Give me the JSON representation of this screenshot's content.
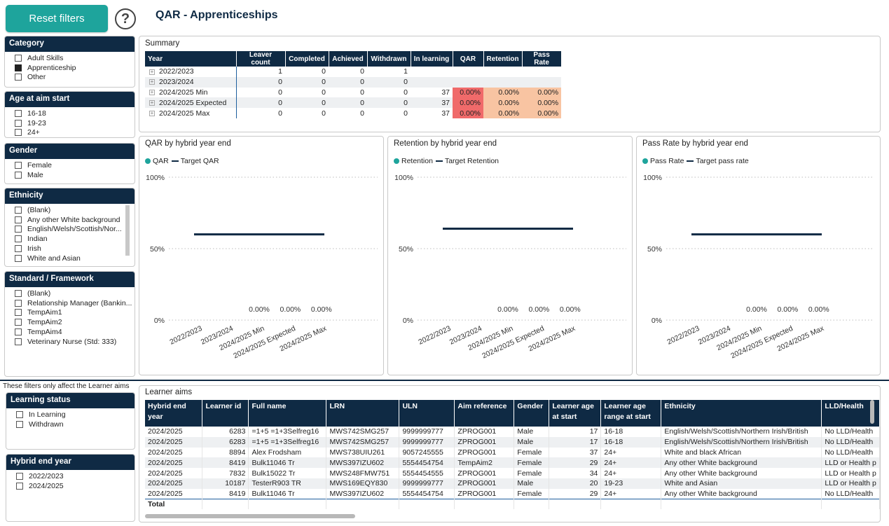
{
  "header": {
    "reset_label": "Reset filters",
    "help_glyph": "?",
    "title": "QAR - Apprenticeships"
  },
  "slicers": {
    "category": {
      "title": "Category",
      "items": [
        {
          "label": "Adult Skills",
          "checked": false
        },
        {
          "label": "Apprenticeship",
          "checked": true
        },
        {
          "label": "Other",
          "checked": false
        }
      ]
    },
    "age": {
      "title": "Age at aim start",
      "items": [
        {
          "label": "16-18",
          "checked": false
        },
        {
          "label": "19-23",
          "checked": false
        },
        {
          "label": "24+",
          "checked": false
        }
      ]
    },
    "gender": {
      "title": "Gender",
      "items": [
        {
          "label": "Female",
          "checked": false
        },
        {
          "label": "Male",
          "checked": false
        }
      ]
    },
    "ethnicity": {
      "title": "Ethnicity",
      "items": [
        {
          "label": "(Blank)",
          "checked": false
        },
        {
          "label": "Any other White background",
          "checked": false
        },
        {
          "label": "English/Welsh/Scottish/Nor...",
          "checked": false
        },
        {
          "label": "Indian",
          "checked": false
        },
        {
          "label": "Irish",
          "checked": false
        },
        {
          "label": "White and Asian",
          "checked": false
        }
      ]
    },
    "standard": {
      "title": "Standard / Framework",
      "items": [
        {
          "label": "(Blank)",
          "checked": false
        },
        {
          "label": "Relationship Manager (Bankin...",
          "checked": false
        },
        {
          "label": "TempAim1",
          "checked": false
        },
        {
          "label": "TempAim2",
          "checked": false
        },
        {
          "label": "TempAim4",
          "checked": false
        },
        {
          "label": "Veterinary Nurse (Std: 333)",
          "checked": false
        }
      ]
    },
    "note": "These filters only affect the Learner aims",
    "learning_status": {
      "title": "Learning status",
      "items": [
        {
          "label": "In Learning",
          "checked": false
        },
        {
          "label": "Withdrawn",
          "checked": false
        }
      ]
    },
    "hybrid_year": {
      "title": "Hybrid end year",
      "items": [
        {
          "label": "2022/2023",
          "checked": false
        },
        {
          "label": "2024/2025",
          "checked": false
        }
      ]
    }
  },
  "summary": {
    "title": "Summary",
    "columns": [
      "Year",
      "Leaver count",
      "Completed",
      "Achieved",
      "Withdrawn",
      "In learning",
      "QAR",
      "Retention",
      "Pass Rate"
    ],
    "rows": [
      {
        "year": "2022/2023",
        "leaver": "1",
        "completed": "0",
        "achieved": "0",
        "withdrawn": "1",
        "in_learning": "",
        "qar": "",
        "retention": "",
        "pass_rate": ""
      },
      {
        "year": "2023/2024",
        "leaver": "0",
        "completed": "0",
        "achieved": "0",
        "withdrawn": "0",
        "in_learning": "",
        "qar": "",
        "retention": "",
        "pass_rate": ""
      },
      {
        "year": "2024/2025 Min",
        "leaver": "0",
        "completed": "0",
        "achieved": "0",
        "withdrawn": "0",
        "in_learning": "37",
        "qar": "0.00%",
        "retention": "0.00%",
        "pass_rate": "0.00%"
      },
      {
        "year": "2024/2025 Expected",
        "leaver": "0",
        "completed": "0",
        "achieved": "0",
        "withdrawn": "0",
        "in_learning": "37",
        "qar": "0.00%",
        "retention": "0.00%",
        "pass_rate": "0.00%"
      },
      {
        "year": "2024/2025 Max",
        "leaver": "0",
        "completed": "0",
        "achieved": "0",
        "withdrawn": "0",
        "in_learning": "37",
        "qar": "0.00%",
        "retention": "0.00%",
        "pass_rate": "0.00%"
      }
    ],
    "colors": {
      "red": "#f06a6a",
      "peach": "#f8c4a2"
    }
  },
  "chart_data": [
    {
      "type": "bar",
      "title": "QAR by hybrid year end",
      "categories": [
        "2022/2023",
        "2023/2024",
        "2024/2025 Min",
        "2024/2025 Expected",
        "2024/2025 Max"
      ],
      "series": [
        {
          "name": "QAR",
          "values": [
            null,
            null,
            0,
            0,
            0
          ],
          "color": "#1ea49c"
        },
        {
          "name": "Target QAR",
          "values": [
            60,
            60,
            60,
            60,
            60
          ],
          "color": "#0f2a44"
        }
      ],
      "data_labels": [
        "",
        "",
        "0.00%",
        "0.00%",
        "0.00%"
      ],
      "y_ticks": [
        "0%",
        "50%",
        "100%"
      ],
      "ylim": [
        0,
        100
      ],
      "grid": true,
      "legend": "top-left"
    },
    {
      "type": "bar",
      "title": "Retention by hybrid year end",
      "categories": [
        "2022/2023",
        "2023/2024",
        "2024/2025 Min",
        "2024/2025 Expected",
        "2024/2025 Max"
      ],
      "series": [
        {
          "name": "Retention",
          "values": [
            null,
            null,
            0,
            0,
            0
          ],
          "color": "#1ea49c"
        },
        {
          "name": "Target Retention",
          "values": [
            64,
            64,
            64,
            64,
            64
          ],
          "color": "#0f2a44"
        }
      ],
      "data_labels": [
        "",
        "",
        "0.00%",
        "0.00%",
        "0.00%"
      ],
      "y_ticks": [
        "0%",
        "50%",
        "100%"
      ],
      "ylim": [
        0,
        100
      ],
      "grid": true,
      "legend": "top-left"
    },
    {
      "type": "bar",
      "title": "Pass Rate by hybrid year end",
      "categories": [
        "2022/2023",
        "2023/2024",
        "2024/2025 Min",
        "2024/2025 Expected",
        "2024/2025 Max"
      ],
      "series": [
        {
          "name": "Pass Rate",
          "values": [
            null,
            null,
            0,
            0,
            0
          ],
          "color": "#1ea49c"
        },
        {
          "name": "Target pass rate",
          "values": [
            60,
            60,
            60,
            60,
            60
          ],
          "color": "#0f2a44"
        }
      ],
      "data_labels": [
        "",
        "",
        "0.00%",
        "0.00%",
        "0.00%"
      ],
      "y_ticks": [
        "0%",
        "50%",
        "100%"
      ],
      "ylim": [
        0,
        100
      ],
      "grid": true,
      "legend": "top-left"
    }
  ],
  "learner_aims": {
    "title": "Learner aims",
    "columns": [
      "Hybrid end year",
      "Learner id",
      "Full name",
      "LRN",
      "ULN",
      "Aim reference",
      "Gender",
      "Learner age at start",
      "Learner age range at start",
      "Ethnicity",
      "LLD/Health"
    ],
    "rows": [
      [
        "2024/2025",
        "6283",
        "=1+5 =1+3Selfreg16",
        "MWS742SMG257",
        "9999999777",
        "ZPROG001",
        "Male",
        "17",
        "16-18",
        "English/Welsh/Scottish/Northern Irish/British",
        "No LLD/Health"
      ],
      [
        "2024/2025",
        "6283",
        "=1+5 =1+3Selfreg16",
        "MWS742SMG257",
        "9999999777",
        "ZPROG001",
        "Male",
        "17",
        "16-18",
        "English/Welsh/Scottish/Northern Irish/British",
        "No LLD/Health"
      ],
      [
        "2024/2025",
        "8894",
        "Alex Frodsham",
        "MWS738UIU261",
        "9057245555",
        "ZPROG001",
        "Female",
        "37",
        "24+",
        "White and black African",
        "No LLD/Health"
      ],
      [
        "2024/2025",
        "8419",
        "Bulk11046 Tr",
        "MWS397IZU602",
        "5554454754",
        "TempAim2",
        "Female",
        "29",
        "24+",
        "Any other White background",
        "LLD or Health p"
      ],
      [
        "2024/2025",
        "7832",
        "Bulk15022 Tr",
        "MWS248FMW751",
        "5554454555",
        "ZPROG001",
        "Female",
        "34",
        "24+",
        "Any other White background",
        "LLD or Health p"
      ],
      [
        "2024/2025",
        "10187",
        "TesterR903 TR",
        "MWS169EQY830",
        "9999999777",
        "ZPROG001",
        "Male",
        "20",
        "19-23",
        "White and Asian",
        "LLD or Health p"
      ],
      [
        "2024/2025",
        "8419",
        "Bulk11046 Tr",
        "MWS397IZU602",
        "5554454754",
        "ZPROG001",
        "Female",
        "29",
        "24+",
        "Any other White background",
        "No LLD/Health"
      ]
    ],
    "total_label": "Total"
  }
}
